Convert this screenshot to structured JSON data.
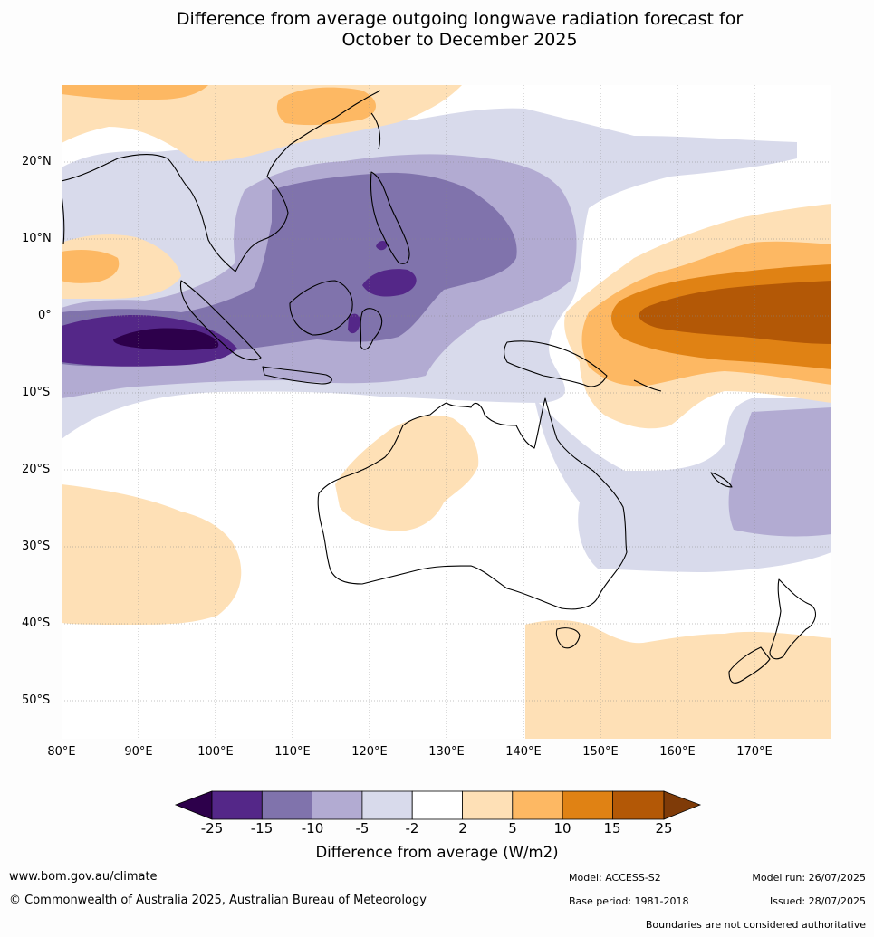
{
  "title": {
    "line1": "Difference from average outgoing longwave radiation forecast for",
    "line2": "October to December 2025"
  },
  "map": {
    "lat_labels": [
      "20°N",
      "10°N",
      "0°",
      "10°S",
      "20°S",
      "30°S",
      "40°S",
      "50°S"
    ],
    "lon_labels": [
      "80°E",
      "90°E",
      "100°E",
      "110°E",
      "120°E",
      "130°E",
      "140°E",
      "150°E",
      "160°E",
      "170°E"
    ],
    "extent": {
      "lon": [
        80,
        180
      ],
      "lat": [
        -55,
        30
      ]
    }
  },
  "colorbar": {
    "ticks": [
      "-25",
      "-15",
      "-10",
      "-5",
      "-2",
      "2",
      "5",
      "10",
      "15",
      "25"
    ],
    "label": "Difference from average (W/m2)",
    "colors": {
      "below_min": "#2d004b",
      "neg25_15": "#542788",
      "neg15_10": "#8073ac",
      "neg10_5": "#b2abd2",
      "neg5_2": "#d8daeb",
      "neutral": "#ffffff",
      "pos2_5": "#fee0b6",
      "pos5_10": "#fdb863",
      "pos10_15": "#e08214",
      "pos15_25": "#b35806",
      "above_max": "#7f3b08"
    }
  },
  "footer": {
    "website": "www.bom.gov.au/climate",
    "copyright": "© Commonwealth of Australia 2025, Australian Bureau of Meteorology",
    "model": "Model: ACCESS-S2",
    "base_period": "Base period: 1981-2018",
    "model_run": "Model run: 26/07/2025",
    "issued": "Issued: 28/07/2025",
    "disclaimer": "Boundaries are not considered authoritative"
  }
}
